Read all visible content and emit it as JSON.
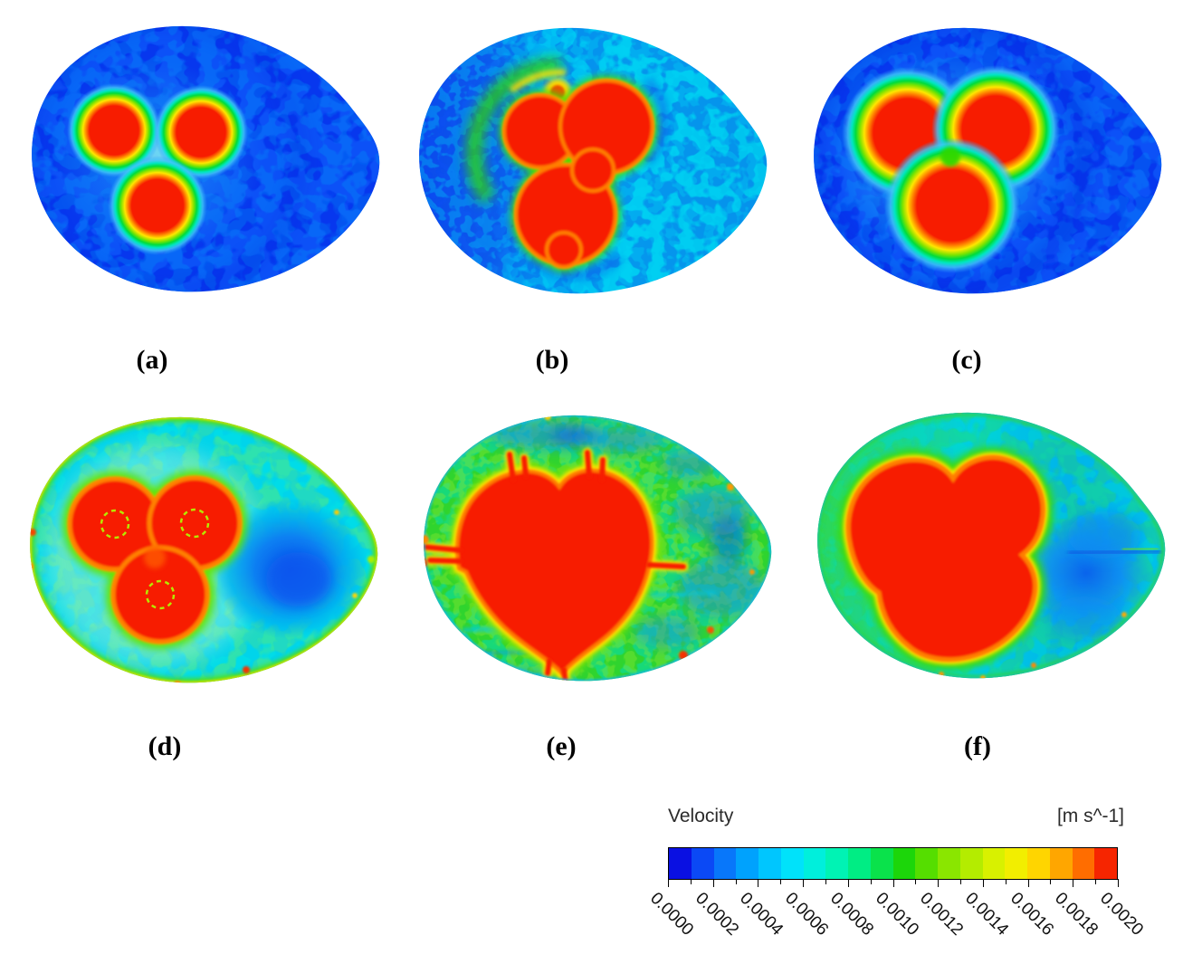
{
  "chart_data": {
    "type": "heatmap",
    "title": "Velocity",
    "units": "m s^-1",
    "units_label": "[m s^-1]",
    "layout": "2x3 grid of egg-shaped velocity contour cross-sections (a)-(f) with one shared horizontal colorbar at bottom right",
    "colorbar": {
      "orientation": "horizontal",
      "min": 0.0,
      "max": 0.002,
      "tick_step": 0.0002,
      "n_bands": 20,
      "tick_label_rotation_deg": 45,
      "tick_labels": [
        "0.0000",
        "0.0002",
        "0.0004",
        "0.0006",
        "0.0008",
        "0.0010",
        "0.0012",
        "0.0014",
        "0.0016",
        "0.0018",
        "0.0020"
      ],
      "band_colors": [
        "#0a10e2",
        "#0b49f5",
        "#0877fa",
        "#00a2fd",
        "#00c6fe",
        "#00e2fa",
        "#00efdc",
        "#00f3b4",
        "#00ed84",
        "#0ae24b",
        "#1cd60a",
        "#55de00",
        "#8ae600",
        "#b4ec00",
        "#d8f100",
        "#f2ee00",
        "#ffd500",
        "#ffa600",
        "#ff6d00",
        "#f62500"
      ]
    },
    "panels": [
      {
        "label": "(a)",
        "description": "Three small separated red hot spots (>=0.0020 m/s) with yellow-green rims and cyan halo on deep blue (~0.0001) background"
      },
      {
        "label": "(b)",
        "description": "Three larger merged red lobes with green-yellow halo and small orange spot above, on mixed blue-cyan (~0.0004) background"
      },
      {
        "label": "(c)",
        "description": "Three large round red hot spots with green rims and merged cyan halo on deep blue background"
      },
      {
        "label": "(d)",
        "description": "Three fused red lobes with dashed conductor outlines inside, cyan (~0.0005) background, green-yellow rim with red specks, blue low-velocity pocket on right"
      },
      {
        "label": "(e)",
        "description": "Large spiky red core spanning most of the section, mottled green-cyan background with blue patches, orange-red spots along the rim"
      },
      {
        "label": "(f)",
        "description": "Large clover-shaped red core, cyan-blue low-velocity region toward right tip with dark streak, green rim and orange streaks on left edge"
      }
    ]
  },
  "palette": {
    "red": "#f71c00",
    "orange": "#ff8c00",
    "yellow": "#ffe300",
    "green": "#2ed800",
    "cyan": "#00e5e0",
    "sky": "#00a2f8",
    "blue": "#0737ee",
    "deep_blue": "#0a10e2",
    "background": "#ffffff",
    "text": "#000000"
  }
}
